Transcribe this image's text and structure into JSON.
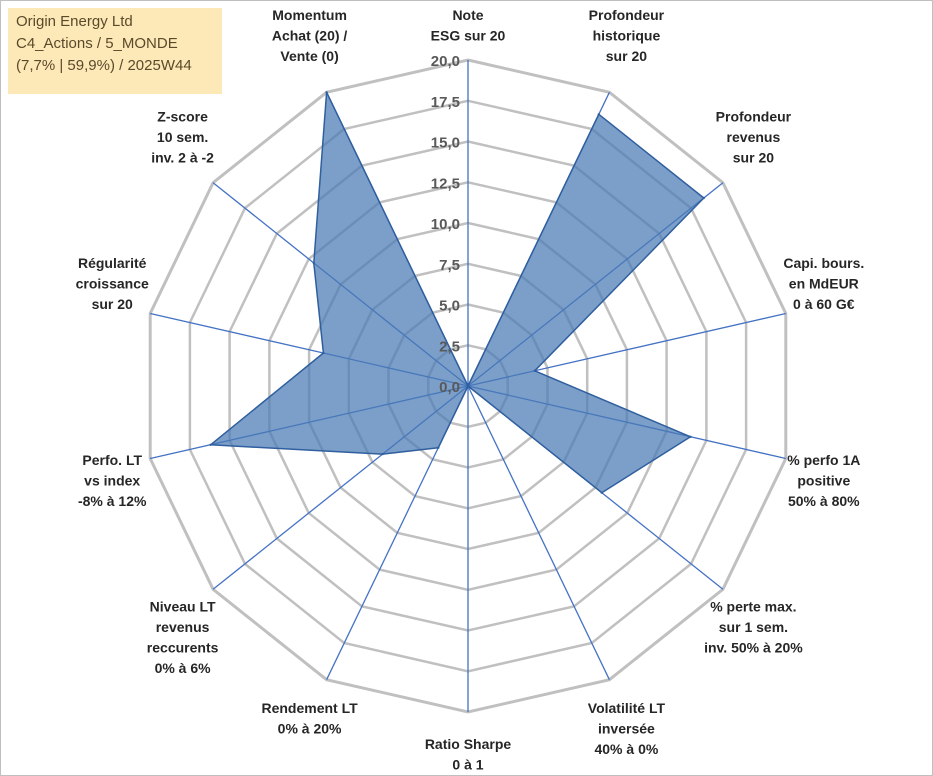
{
  "info": {
    "line1": "Origin Energy Ltd",
    "line2": "C4_Actions / 5_MONDE",
    "line3": "(7,7% | 59,9%) / 2025W44"
  },
  "colors": {
    "fill": "#4a7ab5",
    "stroke": "#2f5f9e",
    "spoke": "#4472c4",
    "grid": "#c0c0c0",
    "infobox": "#fde9b8"
  },
  "chart_data": {
    "type": "radar",
    "title": "",
    "rmax": 20,
    "ticks": [
      "0,0",
      "2,5",
      "5,0",
      "7,5",
      "10,0",
      "12,5",
      "15,0",
      "17,5",
      "20,0"
    ],
    "axes": [
      {
        "label": [
          "Note",
          "ESG sur 20"
        ],
        "value": 0
      },
      {
        "label": [
          "Profondeur",
          "historique",
          "sur 20"
        ],
        "value": 18.5
      },
      {
        "label": [
          "Profondeur",
          "revenus",
          "sur 20"
        ],
        "value": 18.5
      },
      {
        "label": [
          "Capi. bours.",
          "en MdEUR",
          "0 à 60 G€"
        ],
        "value": 4.2
      },
      {
        "label": [
          "% perfo 1A",
          "positive",
          "50% à 80%"
        ],
        "value": 14
      },
      {
        "label": [
          "% perte max.",
          "sur 1 sem.",
          "inv. 50% à 20%"
        ],
        "value": 10.5
      },
      {
        "label": [
          "Volatilité LT",
          "inversée",
          "40% à 0%"
        ],
        "value": 0
      },
      {
        "label": [
          "Ratio Sharpe",
          "0 à 1"
        ],
        "value": 0
      },
      {
        "label": [
          "Rendement LT",
          "0% à 20%"
        ],
        "value": 4.2
      },
      {
        "label": [
          "Niveau LT",
          "revenus",
          "reccurents",
          "0% à 6%"
        ],
        "value": 6.7
      },
      {
        "label": [
          "Perfo. LT",
          "vs index",
          "-8% à 12%"
        ],
        "value": 16.2
      },
      {
        "label": [
          "Régularité",
          "croissance",
          "sur 20"
        ],
        "value": 9.1
      },
      {
        "label": [
          "Z-score",
          "10 sem.",
          "inv. 2 à -2"
        ],
        "value": 12.1
      },
      {
        "label": [
          "Momentum",
          "Achat (20) /",
          "Vente (0)"
        ],
        "value": 20
      }
    ]
  }
}
